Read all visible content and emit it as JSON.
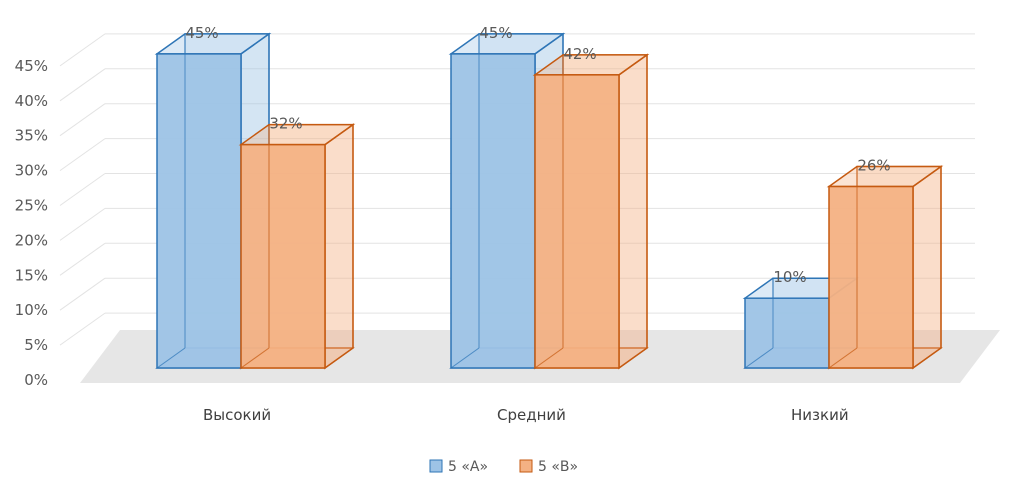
{
  "chart_data": {
    "type": "bar",
    "title": "",
    "xlabel": "",
    "ylabel": "",
    "categories": [
      "Высокий",
      "Средний",
      "Низкий"
    ],
    "series": [
      {
        "name": "5 «А»",
        "values": [
          45,
          45,
          10
        ],
        "labels": [
          "45%",
          "45%",
          "10%"
        ],
        "color": "#9dc3e6",
        "edge": "#2e75b6"
      },
      {
        "name": "5 «В»",
        "values": [
          32,
          42,
          26
        ],
        "labels": [
          "32%",
          "42%",
          "26%"
        ],
        "color": "#f4b183",
        "edge": "#c55a11"
      }
    ],
    "ylim": [
      0,
      45
    ],
    "yticks": [
      "0%",
      "5%",
      "10%",
      "15%",
      "20%",
      "25%",
      "30%",
      "35%",
      "40%",
      "45%"
    ],
    "legend_position": "bottom",
    "grid": true,
    "style": "3d-clustered-column"
  }
}
